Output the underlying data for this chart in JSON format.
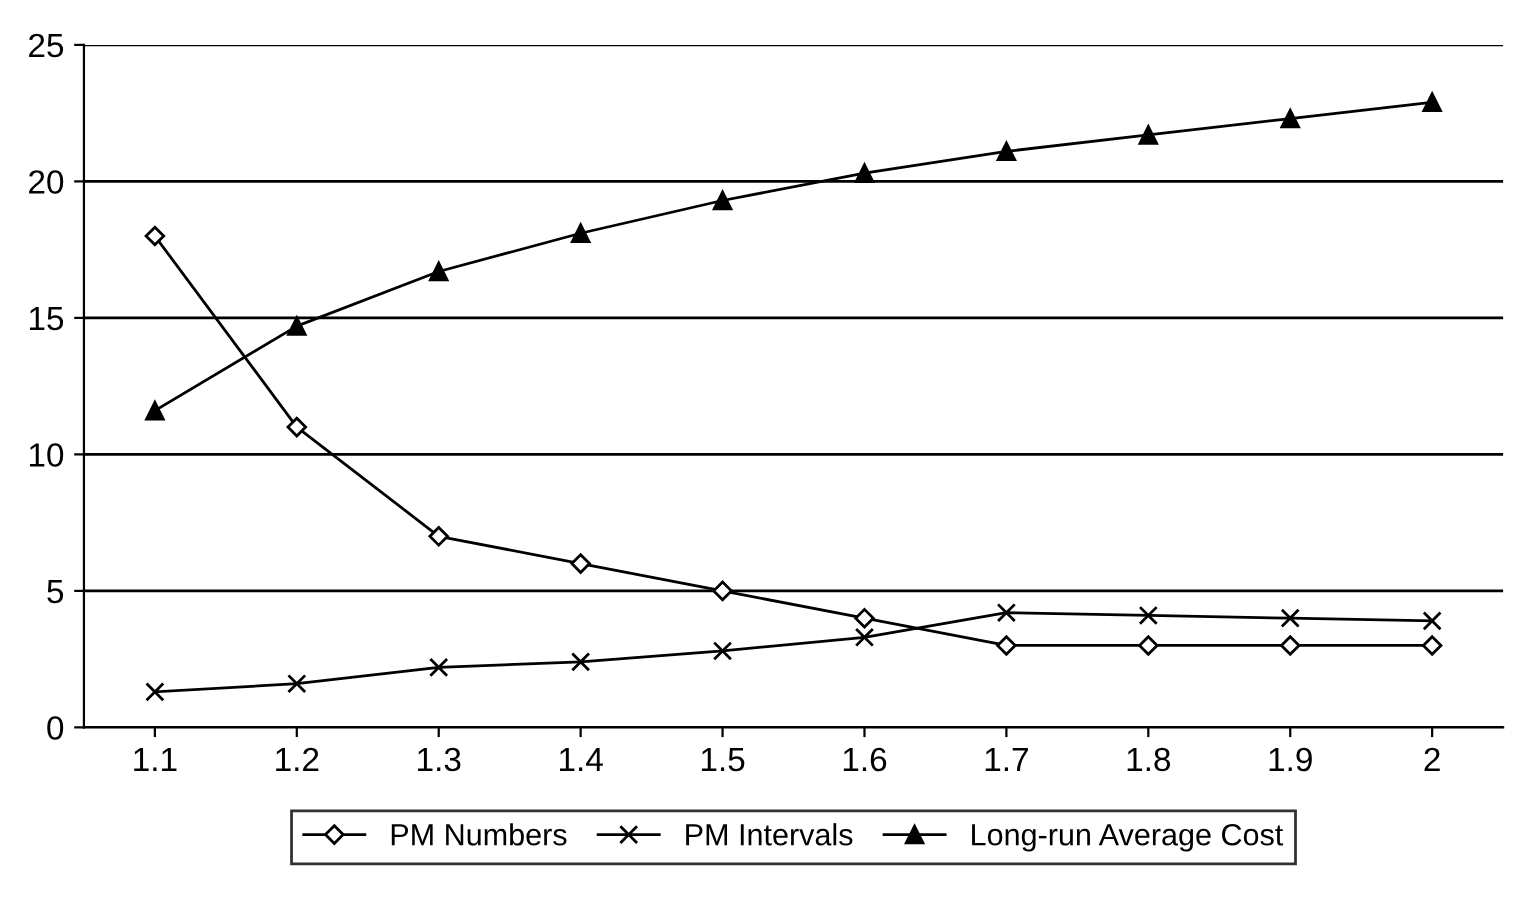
{
  "chart_data": {
    "type": "line",
    "categories": [
      "1.1",
      "1.2",
      "1.3",
      "1.4",
      "1.5",
      "1.6",
      "1.7",
      "1.8",
      "1.9",
      "2"
    ],
    "series": [
      {
        "name": "PM Numbers",
        "color": "#000000",
        "marker": "diamond",
        "values": [
          18,
          11,
          7,
          6,
          5,
          4,
          3,
          3,
          3,
          3
        ]
      },
      {
        "name": "PM Intervals",
        "color": "#000000",
        "marker": "cross",
        "values": [
          1.3,
          1.6,
          2.2,
          2.4,
          2.8,
          3.3,
          4.2,
          4.1,
          4.0,
          3.9
        ]
      },
      {
        "name": "Long-run Average Cost",
        "color": "#000000",
        "marker": "triangle",
        "values": [
          11.6,
          14.7,
          16.7,
          18.1,
          19.3,
          20.3,
          21.1,
          21.7,
          22.3,
          22.9
        ]
      }
    ],
    "ylim": [
      0,
      25
    ],
    "yticks": [
      0,
      5,
      10,
      15,
      20,
      25
    ],
    "grid": "y",
    "legend": "bottom"
  }
}
